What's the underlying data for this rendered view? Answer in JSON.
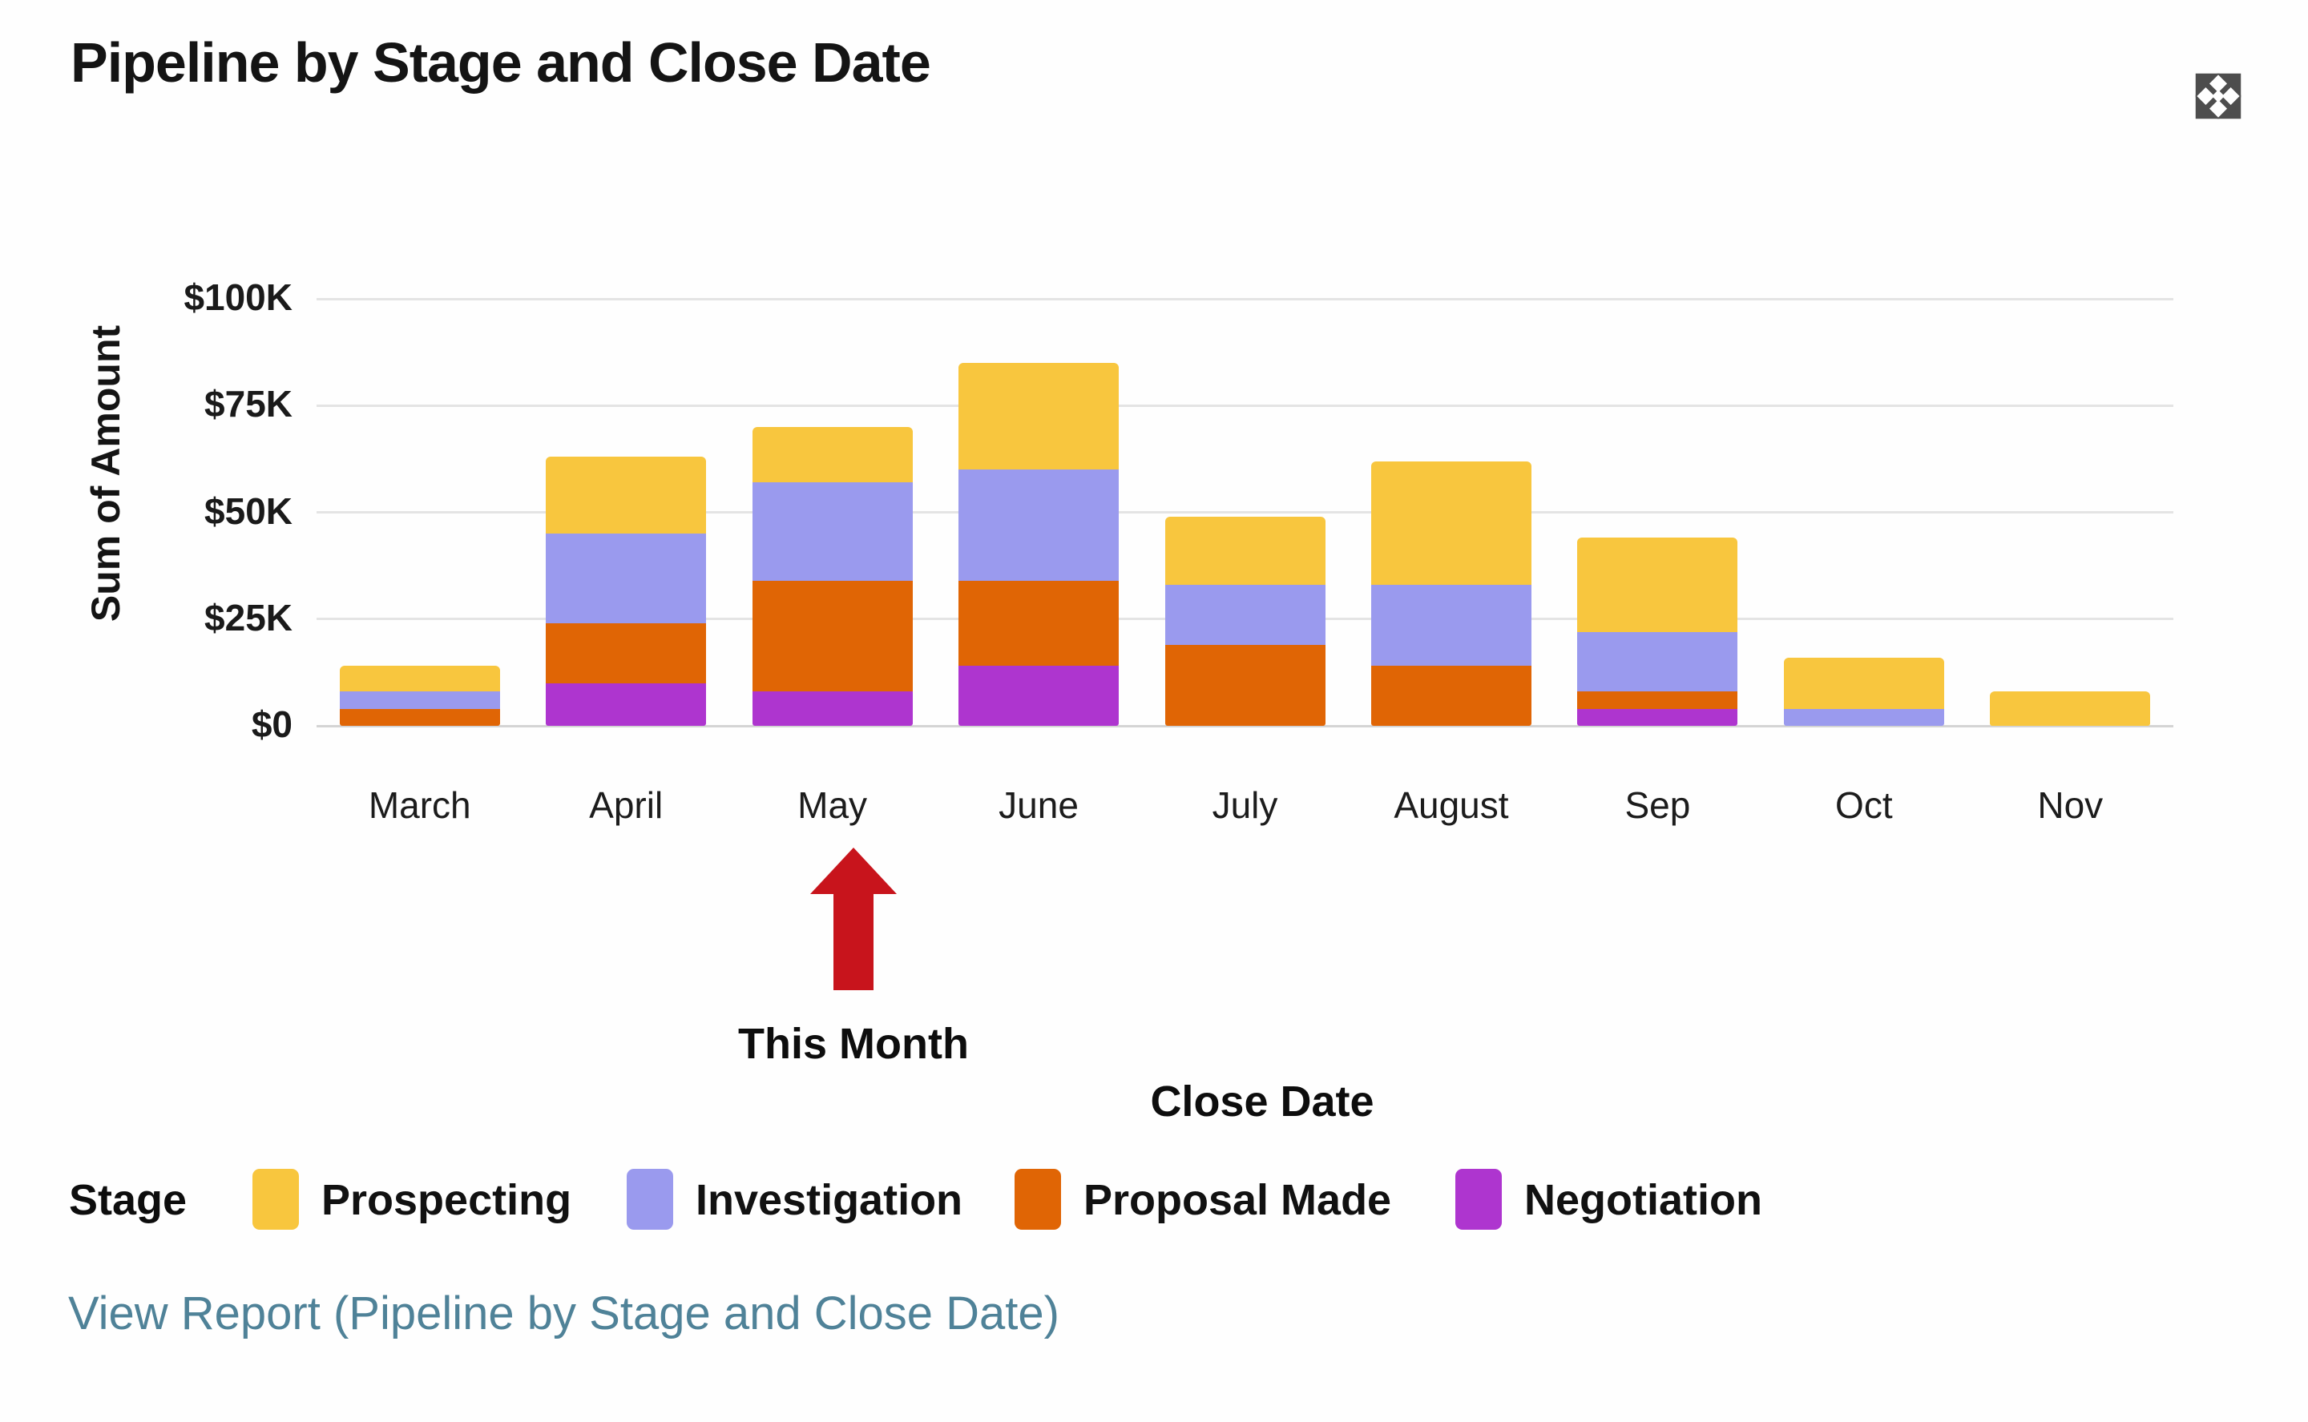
{
  "header": {
    "title": "Pipeline by Stage and Close Date",
    "expand_icon": "expand-icon",
    "expand_icon_color": "#4d4d4d"
  },
  "chart_data": {
    "type": "bar",
    "stacked": true,
    "title": "Pipeline by Stage and Close Date",
    "xlabel": "Close Date",
    "ylabel": "Sum of Amount",
    "unit": "USD thousands",
    "ylim": [
      0,
      100
    ],
    "grid": "horizontal",
    "y_ticks": [
      {
        "label": "$0",
        "value": 0
      },
      {
        "label": "$25K",
        "value": 25
      },
      {
        "label": "$50K",
        "value": 50
      },
      {
        "label": "$75K",
        "value": 75
      },
      {
        "label": "$100K",
        "value": 100
      }
    ],
    "categories": [
      "March",
      "April",
      "May",
      "June",
      "July",
      "August",
      "Sep",
      "Oct",
      "Nov"
    ],
    "series": [
      {
        "name": "Negotiation",
        "color": "#ae35cf",
        "values": [
          0,
          10,
          8,
          14,
          0,
          0,
          4,
          0,
          0
        ]
      },
      {
        "name": "Proposal Made",
        "color": "#e06505",
        "values": [
          4,
          14,
          26,
          20,
          19,
          14,
          4,
          0,
          0
        ]
      },
      {
        "name": "Investigation",
        "color": "#9a9aee",
        "values": [
          4,
          21,
          23,
          26,
          14,
          19,
          14,
          4,
          0
        ]
      },
      {
        "name": "Prospecting",
        "color": "#f8c63e",
        "values": [
          6,
          18,
          13,
          25,
          16,
          29,
          22,
          12,
          8
        ]
      }
    ],
    "totals": [
      14,
      63,
      70,
      85,
      49,
      62,
      44,
      16,
      8
    ],
    "legend": {
      "label": "Stage",
      "position": "bottom",
      "items": [
        {
          "label": "Prospecting",
          "color": "#f8c63e"
        },
        {
          "label": "Investigation",
          "color": "#9a9aee"
        },
        {
          "label": "Proposal Made",
          "color": "#e06505"
        },
        {
          "label": "Negotiation",
          "color": "#ae35cf"
        }
      ]
    },
    "annotation": {
      "text": "This Month",
      "target_category": "May",
      "arrow_color": "#c8141c"
    }
  },
  "footer": {
    "view_report": "View Report (Pipeline by Stage and Close Date)",
    "link_color": "#4f8298"
  }
}
